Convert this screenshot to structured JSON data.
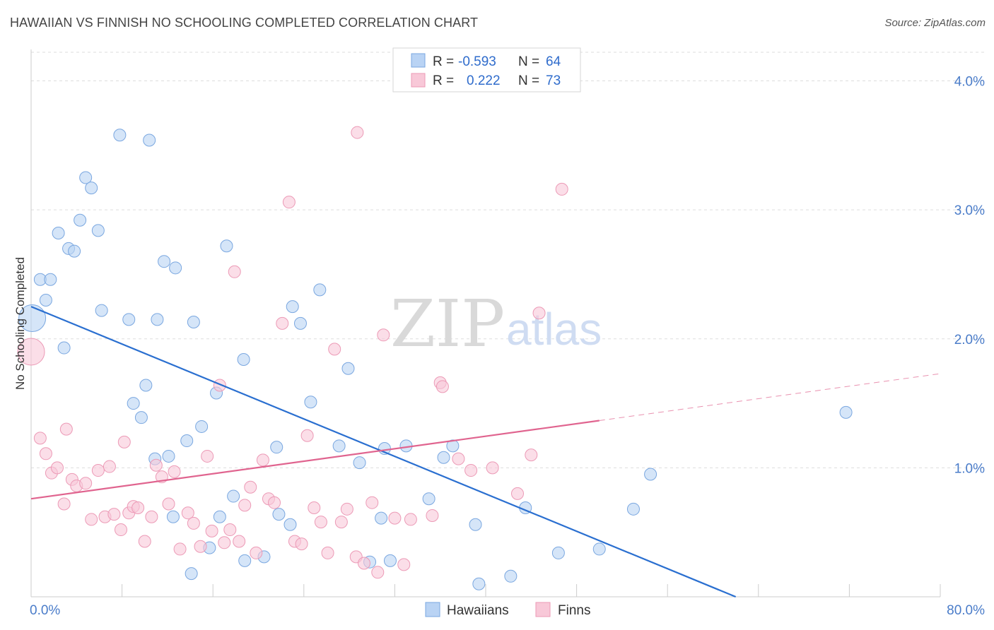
{
  "header": {
    "title": "HAWAIIAN VS FINNISH NO SCHOOLING COMPLETED CORRELATION CHART",
    "source": "Source: ZipAtlas.com"
  },
  "watermark": {
    "part1": "ZIP",
    "part2": "atlas"
  },
  "colors": {
    "hawaiians_fill": "#b9d3f4",
    "hawaiians_stroke": "#7aa7e0",
    "hawaiians_line": "#2a6fd0",
    "finns_fill": "#f8c8d8",
    "finns_stroke": "#ec9ab6",
    "finns_line": "#e0648f",
    "tick_text": "#4a7cc9",
    "grid": "#dddddd"
  },
  "legend_top": {
    "rows": [
      {
        "r_label": "R =",
        "r_value": "-0.593",
        "n_label": "N =",
        "n_value": "64"
      },
      {
        "r_label": "R =",
        "r_value": "0.222",
        "n_label": "N =",
        "n_value": "73"
      }
    ]
  },
  "chart_data": {
    "type": "scatter",
    "title": "HAWAIIAN VS FINNISH NO SCHOOLING COMPLETED CORRELATION CHART",
    "xlabel": "",
    "ylabel": "No Schooling Completed",
    "xlim": [
      0,
      80
    ],
    "ylim": [
      0,
      4.2
    ],
    "x_tick_labels": [
      "0.0%",
      "80.0%"
    ],
    "y_ticks": [
      1,
      2,
      3,
      4
    ],
    "y_tick_labels": [
      "1.0%",
      "2.0%",
      "3.0%",
      "4.0%"
    ],
    "grid": "horizontal dashed",
    "legend_position": "bottom-center",
    "series": [
      {
        "name": "Hawaiians",
        "r": -0.593,
        "n": 64,
        "trend": {
          "x0": 0,
          "y0": 2.25,
          "x1": 62,
          "y1": 0.0,
          "dashed_from": null
        },
        "points": [
          [
            0.1,
            2.16
          ],
          [
            0.8,
            2.46
          ],
          [
            1.7,
            2.46
          ],
          [
            1.3,
            2.3
          ],
          [
            2.4,
            2.82
          ],
          [
            3.3,
            2.7
          ],
          [
            3.8,
            2.68
          ],
          [
            4.3,
            2.92
          ],
          [
            4.8,
            3.25
          ],
          [
            5.3,
            3.17
          ],
          [
            5.9,
            2.84
          ],
          [
            6.2,
            2.22
          ],
          [
            7.8,
            3.58
          ],
          [
            8.6,
            2.15
          ],
          [
            10.4,
            3.54
          ],
          [
            2.9,
            1.93
          ],
          [
            9.0,
            1.5
          ],
          [
            9.7,
            1.39
          ],
          [
            10.1,
            1.64
          ],
          [
            11.1,
            2.15
          ],
          [
            10.9,
            1.07
          ],
          [
            11.7,
            2.6
          ],
          [
            12.1,
            1.09
          ],
          [
            12.5,
            0.62
          ],
          [
            12.7,
            2.55
          ],
          [
            13.7,
            1.21
          ],
          [
            14.1,
            0.18
          ],
          [
            14.3,
            2.13
          ],
          [
            15.0,
            1.32
          ],
          [
            15.7,
            0.38
          ],
          [
            16.6,
            0.62
          ],
          [
            17.2,
            2.72
          ],
          [
            16.3,
            1.58
          ],
          [
            17.8,
            0.78
          ],
          [
            18.7,
            1.84
          ],
          [
            18.8,
            0.28
          ],
          [
            20.5,
            0.31
          ],
          [
            21.6,
            1.16
          ],
          [
            21.8,
            0.64
          ],
          [
            22.8,
            0.56
          ],
          [
            23.0,
            2.25
          ],
          [
            23.7,
            2.12
          ],
          [
            24.6,
            1.51
          ],
          [
            25.4,
            2.38
          ],
          [
            27.1,
            1.17
          ],
          [
            27.9,
            1.77
          ],
          [
            28.9,
            1.04
          ],
          [
            29.8,
            0.27
          ],
          [
            30.8,
            0.61
          ],
          [
            31.1,
            1.15
          ],
          [
            31.6,
            0.28
          ],
          [
            33.0,
            1.17
          ],
          [
            35.0,
            0.76
          ],
          [
            36.3,
            1.08
          ],
          [
            37.1,
            1.17
          ],
          [
            39.1,
            0.56
          ],
          [
            39.4,
            0.1
          ],
          [
            42.2,
            0.16
          ],
          [
            43.5,
            0.69
          ],
          [
            46.4,
            0.34
          ],
          [
            50.0,
            0.37
          ],
          [
            53.0,
            0.68
          ],
          [
            54.5,
            0.95
          ],
          [
            71.7,
            1.43
          ]
        ]
      },
      {
        "name": "Finns",
        "r": 0.222,
        "n": 73,
        "trend": {
          "x0": 0,
          "y0": 0.76,
          "x1": 80,
          "y1": 1.73,
          "dashed_from": 50
        },
        "points": [
          [
            0.0,
            1.9
          ],
          [
            0.8,
            1.23
          ],
          [
            1.3,
            1.11
          ],
          [
            1.8,
            0.96
          ],
          [
            2.3,
            1.0
          ],
          [
            2.9,
            0.72
          ],
          [
            3.1,
            1.3
          ],
          [
            3.6,
            0.91
          ],
          [
            4.0,
            0.86
          ],
          [
            4.8,
            0.88
          ],
          [
            5.3,
            0.6
          ],
          [
            5.9,
            0.98
          ],
          [
            6.5,
            0.62
          ],
          [
            6.9,
            1.01
          ],
          [
            7.3,
            0.64
          ],
          [
            7.9,
            0.52
          ],
          [
            8.2,
            1.2
          ],
          [
            8.6,
            0.65
          ],
          [
            9.0,
            0.7
          ],
          [
            9.4,
            0.69
          ],
          [
            10.0,
            0.43
          ],
          [
            10.6,
            0.62
          ],
          [
            11.0,
            1.02
          ],
          [
            11.5,
            0.93
          ],
          [
            12.1,
            0.72
          ],
          [
            12.6,
            0.97
          ],
          [
            13.1,
            0.37
          ],
          [
            13.8,
            0.65
          ],
          [
            14.3,
            0.57
          ],
          [
            14.9,
            0.39
          ],
          [
            15.5,
            1.09
          ],
          [
            15.9,
            0.51
          ],
          [
            16.6,
            1.64
          ],
          [
            17.0,
            0.42
          ],
          [
            17.5,
            0.52
          ],
          [
            18.3,
            0.43
          ],
          [
            18.8,
            0.71
          ],
          [
            19.3,
            0.85
          ],
          [
            19.8,
            0.34
          ],
          [
            20.4,
            1.06
          ],
          [
            20.9,
            0.76
          ],
          [
            21.4,
            0.73
          ],
          [
            22.1,
            2.12
          ],
          [
            22.7,
            3.06
          ],
          [
            23.2,
            0.43
          ],
          [
            23.8,
            0.41
          ],
          [
            24.3,
            1.25
          ],
          [
            24.9,
            0.69
          ],
          [
            25.5,
            0.58
          ],
          [
            26.1,
            0.34
          ],
          [
            26.7,
            1.92
          ],
          [
            27.3,
            0.58
          ],
          [
            27.8,
            0.68
          ],
          [
            28.6,
            0.31
          ],
          [
            29.3,
            0.26
          ],
          [
            30.0,
            0.73
          ],
          [
            30.5,
            0.19
          ],
          [
            31.0,
            2.03
          ],
          [
            32.0,
            0.61
          ],
          [
            32.8,
            0.25
          ],
          [
            33.4,
            0.6
          ],
          [
            35.3,
            0.63
          ],
          [
            36.0,
            1.66
          ],
          [
            36.2,
            1.63
          ],
          [
            37.6,
            1.07
          ],
          [
            38.7,
            0.98
          ],
          [
            40.6,
            1.0
          ],
          [
            42.8,
            0.8
          ],
          [
            44.0,
            1.1
          ],
          [
            44.7,
            2.2
          ],
          [
            46.7,
            3.16
          ],
          [
            28.7,
            3.6
          ],
          [
            17.9,
            2.52
          ]
        ]
      }
    ]
  },
  "legend_bottom": {
    "items": [
      {
        "label": "Hawaiians"
      },
      {
        "label": "Finns"
      }
    ]
  }
}
